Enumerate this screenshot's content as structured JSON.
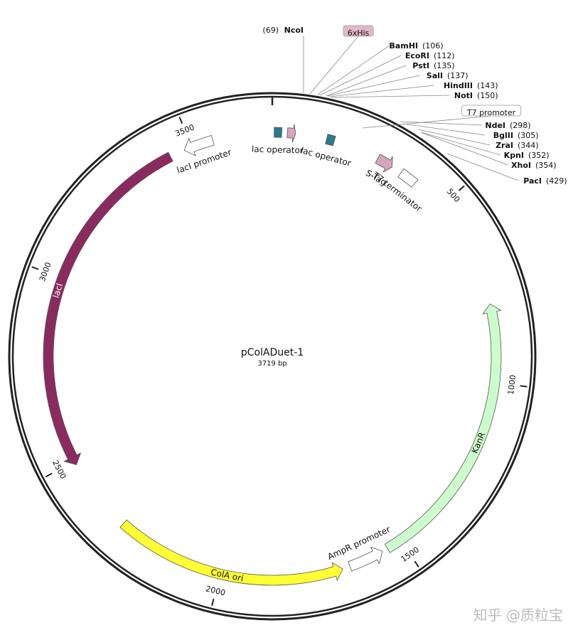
{
  "plasmid": {
    "name": "pColADuet-1",
    "size_label": "3719 bp",
    "length": 3719
  },
  "ticks": [
    {
      "position": 500,
      "label": "500"
    },
    {
      "position": 1000,
      "label": "1000"
    },
    {
      "position": 1500,
      "label": "1500"
    },
    {
      "position": 2000,
      "label": "2000"
    },
    {
      "position": 2500,
      "label": "2500"
    },
    {
      "position": 3000,
      "label": "3000"
    },
    {
      "position": 3500,
      "label": "3500"
    }
  ],
  "features": [
    {
      "id": "lacI",
      "label": "lacI",
      "start": 2490,
      "end": 3440,
      "direction": "ccw",
      "color": "#8b2a5e",
      "label_color": "#ffffff"
    },
    {
      "id": "lacI-promoter",
      "label": "lacI promoter",
      "start": 3480,
      "end": 3560,
      "direction": "ccw",
      "color": "#ffffff",
      "label_color": "#111111"
    },
    {
      "id": "lac-operator-1",
      "label": "lac operator",
      "start": 5,
      "end": 25,
      "direction": "none",
      "color": "#2d7a8c",
      "label_color": "#111111"
    },
    {
      "id": "6xHis-arrow",
      "label": "",
      "start": 40,
      "end": 62,
      "direction": "cw",
      "color": "#d7a5bd",
      "label_color": "#111111"
    },
    {
      "id": "lac-operator-2",
      "label": "lac operator",
      "start": 145,
      "end": 166,
      "direction": "none",
      "color": "#2d7a8c",
      "label_color": "#111111"
    },
    {
      "id": "S-Tag",
      "label": "S-Tag",
      "start": 290,
      "end": 334,
      "direction": "cw",
      "color": "#d7a5bd",
      "label_color": "#111111"
    },
    {
      "id": "T7-terminator",
      "label": "T7 terminator",
      "start": 362,
      "end": 408,
      "direction": "none",
      "color": "#ffffff",
      "label_color": "#111111"
    },
    {
      "id": "KanR",
      "label": "KanR",
      "start": 790,
      "end": 1540,
      "direction": "ccw",
      "color": "#ccfccc",
      "label_color": "#111111"
    },
    {
      "id": "AmpR-promoter",
      "label": "AmpR promoter",
      "start": 1555,
      "end": 1650,
      "direction": "ccw",
      "color": "#ffffff",
      "label_color": "#111111"
    },
    {
      "id": "ColA-ori",
      "label": "ColA ori",
      "start": 1670,
      "end": 2290,
      "direction": "ccw",
      "color": "#ffff33",
      "label_color": "#111111"
    }
  ],
  "sites": [
    {
      "name": "NcoI",
      "position_label": "(69)",
      "side": "left"
    },
    {
      "name": "6xHis",
      "position_label": "",
      "side": "boxed"
    },
    {
      "name": "BamHI",
      "position_label": "(106)",
      "side": "right"
    },
    {
      "name": "EcoRI",
      "position_label": "(112)",
      "side": "right"
    },
    {
      "name": "PstI",
      "position_label": "(135)",
      "side": "right"
    },
    {
      "name": "SalI",
      "position_label": "(137)",
      "side": "right"
    },
    {
      "name": "HindIII",
      "position_label": "(143)",
      "side": "right"
    },
    {
      "name": "NotI",
      "position_label": "(150)",
      "side": "right"
    },
    {
      "name": "T7 promoter",
      "position_label": "",
      "side": "boxed"
    },
    {
      "name": "NdeI",
      "position_label": "(298)",
      "side": "right"
    },
    {
      "name": "BglII",
      "position_label": "(305)",
      "side": "right"
    },
    {
      "name": "ZraI",
      "position_label": "(344)",
      "side": "right"
    },
    {
      "name": "KpnI",
      "position_label": "(352)",
      "side": "right"
    },
    {
      "name": "XhoI",
      "position_label": "(354)",
      "side": "right"
    },
    {
      "name": "PacI",
      "position_label": "(429)",
      "side": "right"
    }
  ],
  "watermark": "知乎 @质粒宝"
}
